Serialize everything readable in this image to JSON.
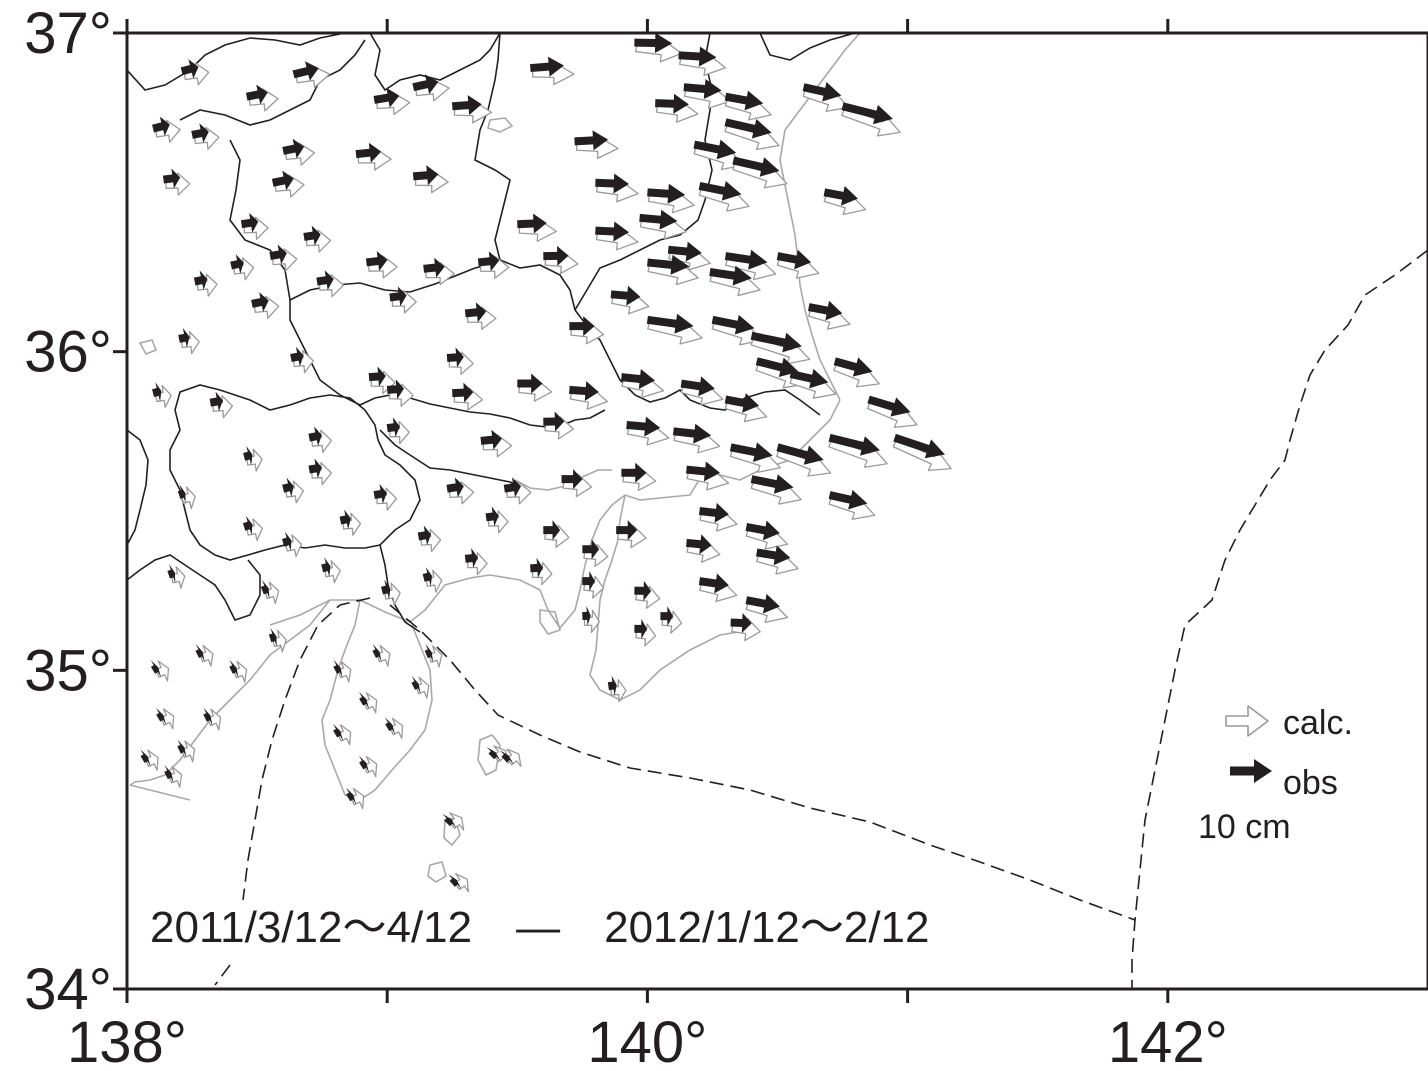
{
  "map": {
    "lon_range": [
      138,
      143
    ],
    "lat_range": [
      34,
      37
    ],
    "x_ticks": [
      {
        "value": 138,
        "label": "138°"
      },
      {
        "value": 140,
        "label": "140°"
      },
      {
        "value": 142,
        "label": "142°"
      }
    ],
    "y_ticks": [
      {
        "value": 37,
        "label": "37°"
      },
      {
        "value": 36,
        "label": "36°"
      },
      {
        "value": 35,
        "label": "35°"
      },
      {
        "value": 34,
        "label": "34°"
      }
    ],
    "minor_x_ticks": [
      139,
      141
    ],
    "period_label": "2011/3/12〜4/12　—　2012/1/12〜2/12",
    "legend": {
      "calc_label": "calc.",
      "obs_label": "obs",
      "scale_label": "10 cm"
    },
    "colors": {
      "obs": "#231f20",
      "calc_outline": "#9a9a9a",
      "coast": "#a8a8a8",
      "border": "#231f20",
      "frame": "#231f20"
    },
    "vectors": [
      {
        "lon": 138.21,
        "lat": 36.88,
        "de": 4,
        "dn": 1
      },
      {
        "lon": 138.46,
        "lat": 36.8,
        "de": 5,
        "dn": 1
      },
      {
        "lon": 138.64,
        "lat": 36.87,
        "de": 6,
        "dn": 1.5
      },
      {
        "lon": 138.1,
        "lat": 36.7,
        "de": 4,
        "dn": 1
      },
      {
        "lon": 138.25,
        "lat": 36.68,
        "de": 4,
        "dn": 0.8
      },
      {
        "lon": 138.14,
        "lat": 36.54,
        "de": 4,
        "dn": 0.5
      },
      {
        "lon": 138.6,
        "lat": 36.63,
        "de": 5,
        "dn": 1
      },
      {
        "lon": 138.56,
        "lat": 36.53,
        "de": 5,
        "dn": 1
      },
      {
        "lon": 138.88,
        "lat": 36.62,
        "de": 6,
        "dn": 0.6
      },
      {
        "lon": 139.1,
        "lat": 36.55,
        "de": 6,
        "dn": 0.5
      },
      {
        "lon": 138.95,
        "lat": 36.79,
        "de": 6,
        "dn": 1
      },
      {
        "lon": 139.1,
        "lat": 36.83,
        "de": 6,
        "dn": 1.3
      },
      {
        "lon": 139.25,
        "lat": 36.77,
        "de": 7,
        "dn": 0.5
      },
      {
        "lon": 139.55,
        "lat": 36.89,
        "de": 8,
        "dn": 0.6
      },
      {
        "lon": 139.72,
        "lat": 36.66,
        "de": 8,
        "dn": 0.4
      },
      {
        "lon": 139.95,
        "lat": 36.97,
        "de": 9,
        "dn": -0.2
      },
      {
        "lon": 140.12,
        "lat": 36.93,
        "de": 9,
        "dn": -0.5
      },
      {
        "lon": 140.03,
        "lat": 36.78,
        "de": 8,
        "dn": -0.3
      },
      {
        "lon": 140.14,
        "lat": 36.83,
        "de": 9,
        "dn": -0.8
      },
      {
        "lon": 140.3,
        "lat": 36.8,
        "de": 9,
        "dn": -1.6
      },
      {
        "lon": 140.6,
        "lat": 36.83,
        "de": 9,
        "dn": -2
      },
      {
        "lon": 140.3,
        "lat": 36.72,
        "de": 11,
        "dn": -2.5
      },
      {
        "lon": 140.75,
        "lat": 36.77,
        "de": 12,
        "dn": -3
      },
      {
        "lon": 140.18,
        "lat": 36.65,
        "de": 10,
        "dn": -2
      },
      {
        "lon": 140.33,
        "lat": 36.6,
        "de": 11,
        "dn": -2.5
      },
      {
        "lon": 139.8,
        "lat": 36.53,
        "de": 8,
        "dn": -0.3
      },
      {
        "lon": 140.0,
        "lat": 36.5,
        "de": 9,
        "dn": -0.6
      },
      {
        "lon": 140.2,
        "lat": 36.52,
        "de": 10,
        "dn": -2
      },
      {
        "lon": 140.68,
        "lat": 36.5,
        "de": 8,
        "dn": -1.5
      },
      {
        "lon": 139.97,
        "lat": 36.42,
        "de": 9,
        "dn": -0.8
      },
      {
        "lon": 139.8,
        "lat": 36.38,
        "de": 8,
        "dn": -0.4
      },
      {
        "lon": 139.5,
        "lat": 36.4,
        "de": 7,
        "dn": 0.3
      },
      {
        "lon": 140.08,
        "lat": 36.32,
        "de": 8,
        "dn": -0.8
      },
      {
        "lon": 140.3,
        "lat": 36.3,
        "de": 10,
        "dn": -1.5
      },
      {
        "lon": 140.5,
        "lat": 36.3,
        "de": 8,
        "dn": -1.5
      },
      {
        "lon": 140.0,
        "lat": 36.28,
        "de": 10,
        "dn": -1
      },
      {
        "lon": 140.24,
        "lat": 36.25,
        "de": 10,
        "dn": -1.5
      },
      {
        "lon": 139.6,
        "lat": 36.3,
        "de": 6,
        "dn": 0.1
      },
      {
        "lon": 139.35,
        "lat": 36.28,
        "de": 5,
        "dn": 0.5
      },
      {
        "lon": 139.14,
        "lat": 36.26,
        "de": 5,
        "dn": 0.5
      },
      {
        "lon": 138.92,
        "lat": 36.28,
        "de": 5,
        "dn": 0.6
      },
      {
        "lon": 138.68,
        "lat": 36.36,
        "de": 4,
        "dn": 0.6
      },
      {
        "lon": 138.44,
        "lat": 36.4,
        "de": 4,
        "dn": 0.6
      },
      {
        "lon": 138.55,
        "lat": 36.3,
        "de": 4,
        "dn": 0.7
      },
      {
        "lon": 138.4,
        "lat": 36.27,
        "de": 3,
        "dn": 0.7
      },
      {
        "lon": 138.73,
        "lat": 36.22,
        "de": 4,
        "dn": 0.6
      },
      {
        "lon": 138.26,
        "lat": 36.22,
        "de": 3,
        "dn": 0.6
      },
      {
        "lon": 138.48,
        "lat": 36.15,
        "de": 4,
        "dn": 0.8
      },
      {
        "lon": 139.01,
        "lat": 36.17,
        "de": 4,
        "dn": 0.5
      },
      {
        "lon": 139.3,
        "lat": 36.12,
        "de": 5,
        "dn": 0.5
      },
      {
        "lon": 139.7,
        "lat": 36.08,
        "de": 6,
        "dn": 0
      },
      {
        "lon": 139.86,
        "lat": 36.18,
        "de": 7,
        "dn": -0.6
      },
      {
        "lon": 140.0,
        "lat": 36.1,
        "de": 11,
        "dn": -1.5
      },
      {
        "lon": 140.25,
        "lat": 36.1,
        "de": 10,
        "dn": -2
      },
      {
        "lon": 140.4,
        "lat": 36.05,
        "de": 12,
        "dn": -2.5
      },
      {
        "lon": 140.62,
        "lat": 36.14,
        "de": 8,
        "dn": -1.5
      },
      {
        "lon": 140.42,
        "lat": 35.97,
        "de": 10,
        "dn": -2.5
      },
      {
        "lon": 140.55,
        "lat": 35.93,
        "de": 9,
        "dn": -2
      },
      {
        "lon": 140.72,
        "lat": 35.97,
        "de": 9,
        "dn": -2.5
      },
      {
        "lon": 140.13,
        "lat": 35.9,
        "de": 8,
        "dn": -1.2
      },
      {
        "lon": 140.3,
        "lat": 35.85,
        "de": 8,
        "dn": -1.5
      },
      {
        "lon": 139.9,
        "lat": 35.92,
        "de": 8,
        "dn": -0.8
      },
      {
        "lon": 139.7,
        "lat": 35.88,
        "de": 7,
        "dn": -0.5
      },
      {
        "lon": 139.5,
        "lat": 35.9,
        "de": 6,
        "dn": 0
      },
      {
        "lon": 139.23,
        "lat": 35.98,
        "de": 4,
        "dn": 0.3
      },
      {
        "lon": 138.93,
        "lat": 35.92,
        "de": 4,
        "dn": 0.3
      },
      {
        "lon": 138.63,
        "lat": 35.98,
        "de": 3,
        "dn": 0.6
      },
      {
        "lon": 138.2,
        "lat": 36.04,
        "de": 2.5,
        "dn": 0.5
      },
      {
        "lon": 138.1,
        "lat": 35.87,
        "de": 2,
        "dn": 0.5
      },
      {
        "lon": 138.32,
        "lat": 35.84,
        "de": 3,
        "dn": 0.5
      },
      {
        "lon": 139.0,
        "lat": 35.88,
        "de": 4,
        "dn": 0.3
      },
      {
        "lon": 139.25,
        "lat": 35.87,
        "de": 5,
        "dn": 0.2
      },
      {
        "lon": 140.85,
        "lat": 35.85,
        "de": 10,
        "dn": -3
      },
      {
        "lon": 140.95,
        "lat": 35.73,
        "de": 12,
        "dn": -4
      },
      {
        "lon": 140.7,
        "lat": 35.73,
        "de": 12,
        "dn": -3
      },
      {
        "lon": 140.5,
        "lat": 35.7,
        "de": 11,
        "dn": -3
      },
      {
        "lon": 140.32,
        "lat": 35.7,
        "de": 10,
        "dn": -2
      },
      {
        "lon": 140.1,
        "lat": 35.75,
        "de": 9,
        "dn": -1
      },
      {
        "lon": 139.92,
        "lat": 35.77,
        "de": 8,
        "dn": -0.7
      },
      {
        "lon": 139.6,
        "lat": 35.78,
        "de": 5,
        "dn": 0.1
      },
      {
        "lon": 139.36,
        "lat": 35.72,
        "de": 5,
        "dn": 0.5
      },
      {
        "lon": 139.0,
        "lat": 35.76,
        "de": 3,
        "dn": 0.4
      },
      {
        "lon": 138.7,
        "lat": 35.73,
        "de": 3,
        "dn": 0.6
      },
      {
        "lon": 138.45,
        "lat": 35.67,
        "de": 2,
        "dn": 0.5
      },
      {
        "lon": 138.7,
        "lat": 35.63,
        "de": 3,
        "dn": 0.5
      },
      {
        "lon": 138.6,
        "lat": 35.57,
        "de": 2.5,
        "dn": 0.6
      },
      {
        "lon": 140.4,
        "lat": 35.6,
        "de": 10,
        "dn": -2
      },
      {
        "lon": 140.7,
        "lat": 35.55,
        "de": 9,
        "dn": -2
      },
      {
        "lon": 140.15,
        "lat": 35.63,
        "de": 8,
        "dn": -0.8
      },
      {
        "lon": 139.9,
        "lat": 35.62,
        "de": 6,
        "dn": 0
      },
      {
        "lon": 139.67,
        "lat": 35.6,
        "de": 5,
        "dn": 0
      },
      {
        "lon": 139.45,
        "lat": 35.57,
        "de": 4,
        "dn": 0.6
      },
      {
        "lon": 139.23,
        "lat": 35.57,
        "de": 4,
        "dn": 0.6
      },
      {
        "lon": 138.95,
        "lat": 35.55,
        "de": 3,
        "dn": 0.5
      },
      {
        "lon": 140.2,
        "lat": 35.5,
        "de": 7,
        "dn": -0.8
      },
      {
        "lon": 140.38,
        "lat": 35.45,
        "de": 8,
        "dn": -1.5
      },
      {
        "lon": 140.42,
        "lat": 35.37,
        "de": 8,
        "dn": -1.3
      },
      {
        "lon": 140.15,
        "lat": 35.4,
        "de": 6,
        "dn": -0.6
      },
      {
        "lon": 139.88,
        "lat": 35.44,
        "de": 5,
        "dn": 0
      },
      {
        "lon": 139.6,
        "lat": 35.44,
        "de": 4,
        "dn": 0
      },
      {
        "lon": 139.38,
        "lat": 35.48,
        "de": 3,
        "dn": 0.4
      },
      {
        "lon": 139.12,
        "lat": 35.42,
        "de": 3,
        "dn": 0.5
      },
      {
        "lon": 138.82,
        "lat": 35.47,
        "de": 2.5,
        "dn": 0.5
      },
      {
        "lon": 138.6,
        "lat": 35.4,
        "de": 2,
        "dn": 0.6
      },
      {
        "lon": 138.45,
        "lat": 35.45,
        "de": 2,
        "dn": 0.6
      },
      {
        "lon": 138.75,
        "lat": 35.32,
        "de": 2,
        "dn": 0.5
      },
      {
        "lon": 139.3,
        "lat": 35.35,
        "de": 3,
        "dn": 0.3
      },
      {
        "lon": 139.55,
        "lat": 35.32,
        "de": 3,
        "dn": 0.2
      },
      {
        "lon": 139.75,
        "lat": 35.38,
        "de": 4,
        "dn": 0
      },
      {
        "lon": 140.2,
        "lat": 35.28,
        "de": 7,
        "dn": -1
      },
      {
        "lon": 140.38,
        "lat": 35.22,
        "de": 8,
        "dn": -1.5
      },
      {
        "lon": 140.32,
        "lat": 35.15,
        "de": 5,
        "dn": -0.2
      },
      {
        "lon": 139.95,
        "lat": 35.25,
        "de": 4,
        "dn": -0.1
      },
      {
        "lon": 139.75,
        "lat": 35.28,
        "de": 3,
        "dn": 0
      },
      {
        "lon": 138.2,
        "lat": 35.55,
        "de": 1.5,
        "dn": 0.5
      },
      {
        "lon": 138.16,
        "lat": 35.3,
        "de": 1.5,
        "dn": 0.5
      },
      {
        "lon": 138.52,
        "lat": 35.25,
        "de": 1.5,
        "dn": 0.6
      },
      {
        "lon": 138.98,
        "lat": 35.25,
        "de": 2,
        "dn": 0.5
      },
      {
        "lon": 139.14,
        "lat": 35.29,
        "de": 2,
        "dn": 0.5
      },
      {
        "lon": 139.95,
        "lat": 35.13,
        "de": 3,
        "dn": 0
      },
      {
        "lon": 139.75,
        "lat": 35.17,
        "de": 2,
        "dn": 0.1
      },
      {
        "lon": 140.05,
        "lat": 35.17,
        "de": 3,
        "dn": 0
      },
      {
        "lon": 139.85,
        "lat": 34.95,
        "de": 2,
        "dn": 0.3
      },
      {
        "lon": 138.1,
        "lat": 35.0,
        "de": 1,
        "dn": 0.6
      },
      {
        "lon": 138.27,
        "lat": 35.05,
        "de": 1,
        "dn": 0.5
      },
      {
        "lon": 138.4,
        "lat": 35.0,
        "de": 1,
        "dn": 0.5
      },
      {
        "lon": 138.55,
        "lat": 35.1,
        "de": 1.5,
        "dn": 0.5
      },
      {
        "lon": 138.12,
        "lat": 34.85,
        "de": 1,
        "dn": 0.6
      },
      {
        "lon": 138.3,
        "lat": 34.85,
        "de": 1,
        "dn": 0.5
      },
      {
        "lon": 138.2,
        "lat": 34.75,
        "de": 1,
        "dn": 0.5
      },
      {
        "lon": 138.06,
        "lat": 34.72,
        "de": 1,
        "dn": 0.6
      },
      {
        "lon": 138.15,
        "lat": 34.67,
        "de": 1,
        "dn": 0.5
      },
      {
        "lon": 138.8,
        "lat": 35.0,
        "de": 1.2,
        "dn": 0.6
      },
      {
        "lon": 138.95,
        "lat": 35.05,
        "de": 1.2,
        "dn": 0.6
      },
      {
        "lon": 138.9,
        "lat": 34.9,
        "de": 1,
        "dn": 0.6
      },
      {
        "lon": 138.8,
        "lat": 34.8,
        "de": 1,
        "dn": 0.6
      },
      {
        "lon": 139.0,
        "lat": 34.82,
        "de": 1,
        "dn": 0.6
      },
      {
        "lon": 138.9,
        "lat": 34.7,
        "de": 1,
        "dn": 0.6
      },
      {
        "lon": 138.85,
        "lat": 34.6,
        "de": 1,
        "dn": 0.6
      },
      {
        "lon": 139.1,
        "lat": 34.95,
        "de": 1.2,
        "dn": 0.6
      },
      {
        "lon": 139.15,
        "lat": 35.05,
        "de": 1.2,
        "dn": 0.5
      },
      {
        "lon": 139.4,
        "lat": 34.73,
        "de": 0.8,
        "dn": 0.8
      },
      {
        "lon": 139.45,
        "lat": 34.72,
        "de": 0.8,
        "dn": 0.8
      },
      {
        "lon": 139.25,
        "lat": 34.33,
        "de": 0.8,
        "dn": 0.7
      },
      {
        "lon": 139.23,
        "lat": 34.52,
        "de": 0.6,
        "dn": 0.6
      }
    ]
  }
}
